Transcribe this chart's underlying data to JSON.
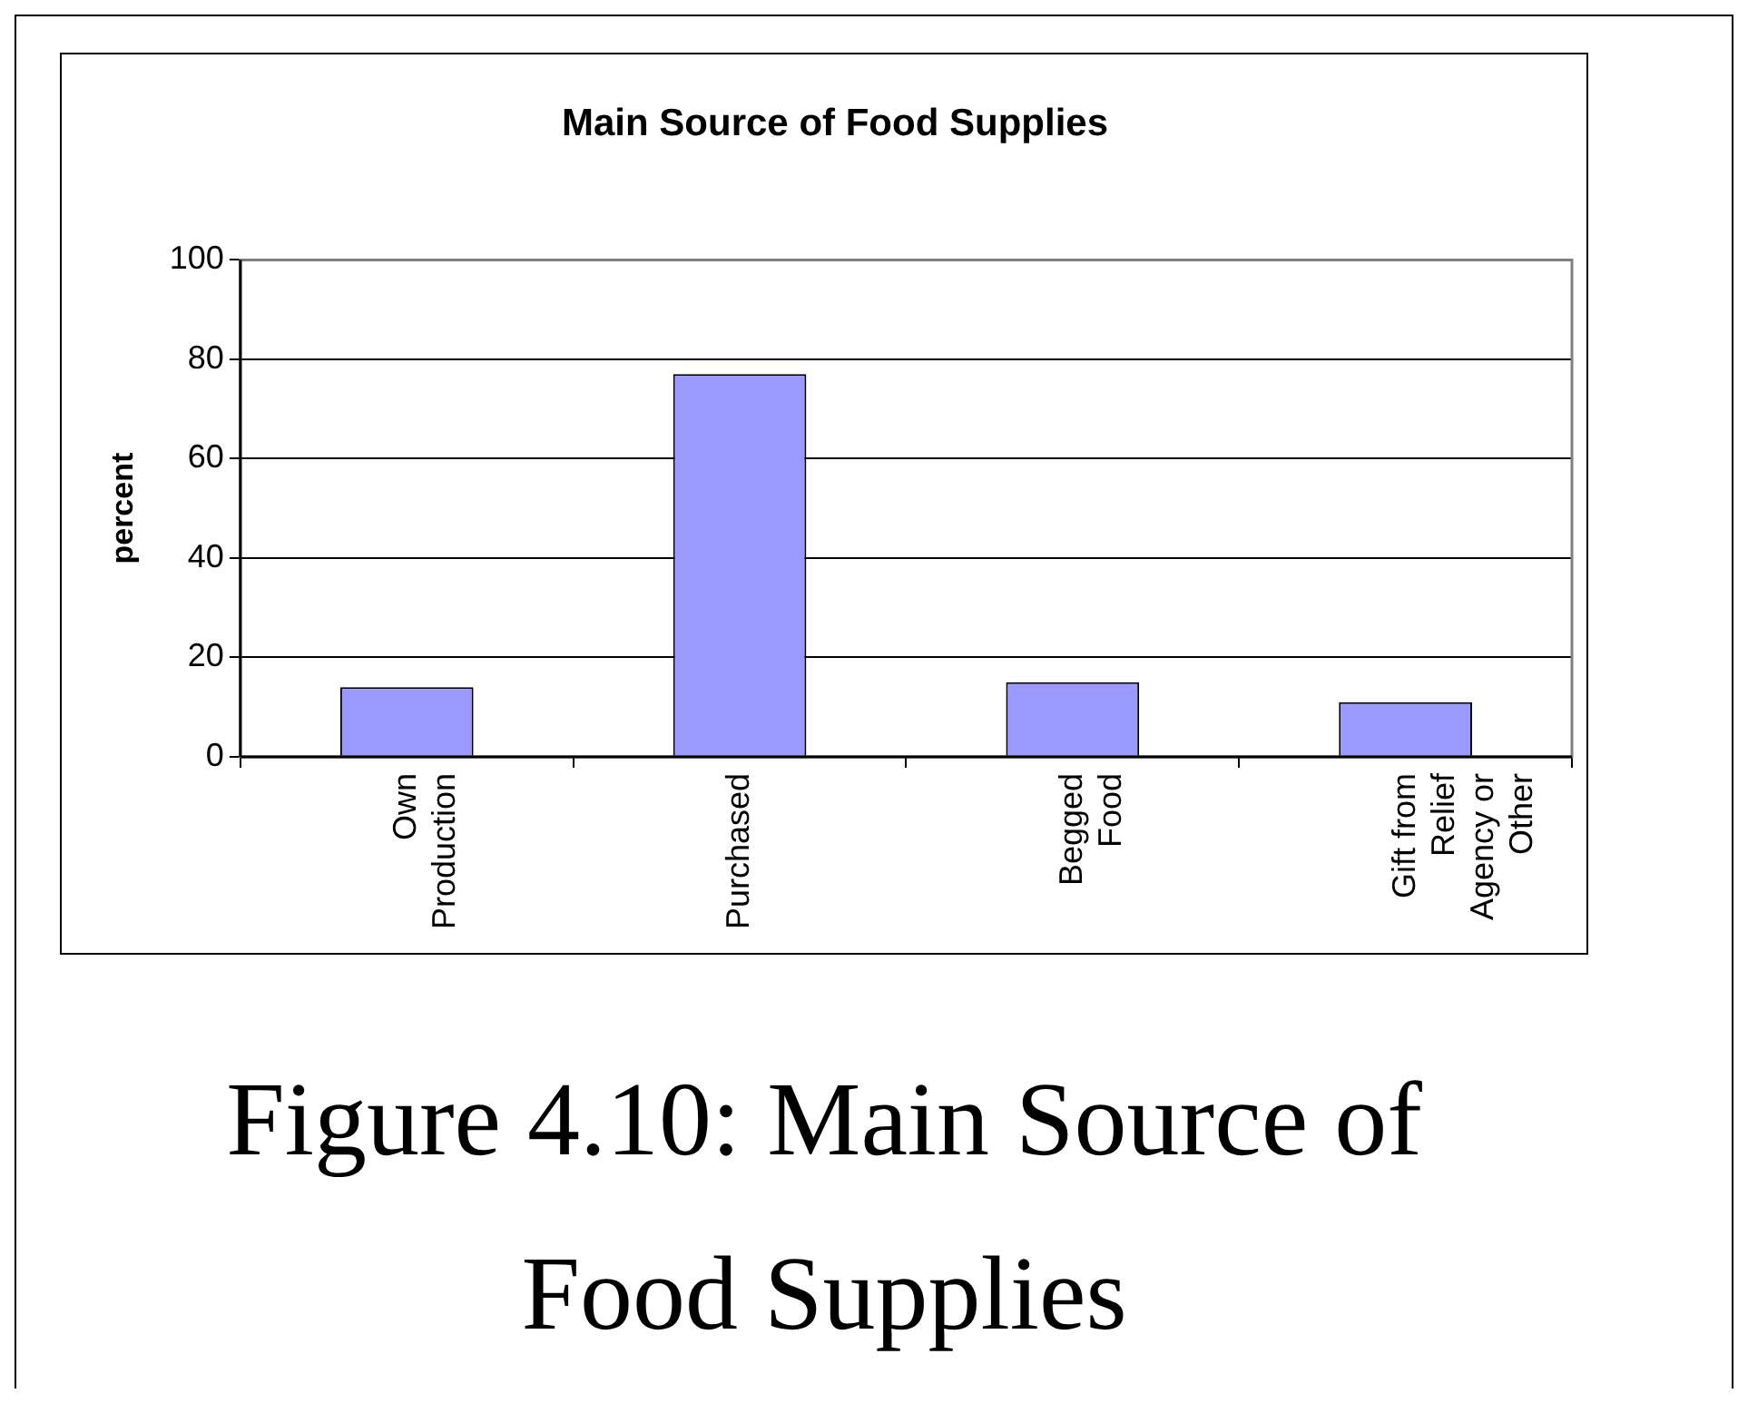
{
  "chart_data": {
    "type": "bar",
    "title": "Main Source of Food Supplies",
    "ylabel": "percent",
    "categories": [
      "Own Production",
      "Purchased",
      "Begged Food",
      "Gift from Relief Agency or Other"
    ],
    "values": [
      14,
      77,
      15,
      11
    ],
    "color": "#9999ff",
    "ylim": [
      0,
      100
    ],
    "yticks": [
      0,
      20,
      40,
      60,
      80,
      100
    ],
    "grid": "y",
    "legend": false,
    "annotations": [
      "Figure 4.10: Main Source of Food Supplies"
    ]
  }
}
